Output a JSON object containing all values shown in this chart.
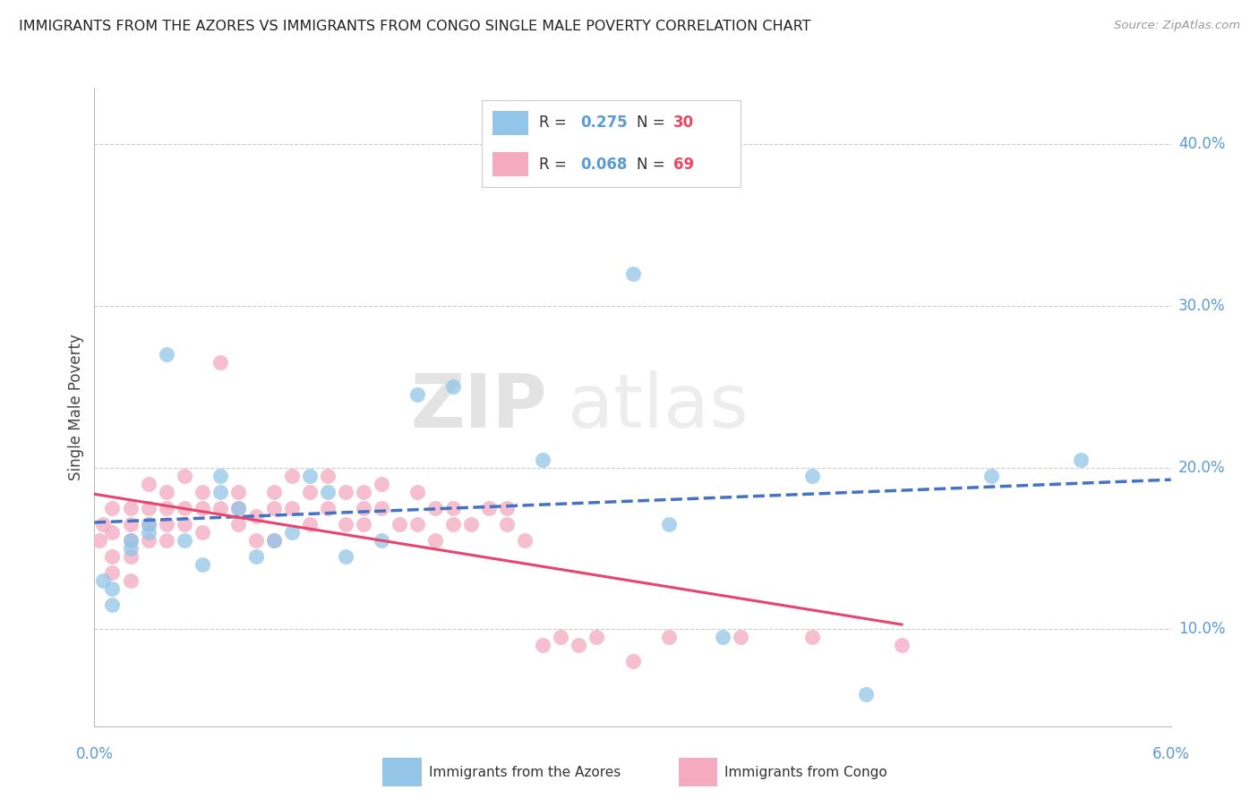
{
  "title": "IMMIGRANTS FROM THE AZORES VS IMMIGRANTS FROM CONGO SINGLE MALE POVERTY CORRELATION CHART",
  "source": "Source: ZipAtlas.com",
  "ylabel": "Single Male Poverty",
  "xlim": [
    0.0,
    0.06
  ],
  "ylim": [
    0.04,
    0.435
  ],
  "yticks": [
    0.1,
    0.2,
    0.3,
    0.4
  ],
  "ytick_labels": [
    "10.0%",
    "20.0%",
    "30.0%",
    "40.0%"
  ],
  "azores_color": "#92C5E8",
  "congo_color": "#F4AABF",
  "azores_line_color": "#4472C4",
  "congo_line_color": "#E8456E",
  "watermark_zip": "ZIP",
  "watermark_atlas": "atlas",
  "azores_R": "0.275",
  "azores_N": "30",
  "congo_R": "0.068",
  "congo_N": "69",
  "azores_x": [
    0.0005,
    0.001,
    0.001,
    0.002,
    0.002,
    0.003,
    0.003,
    0.004,
    0.005,
    0.006,
    0.007,
    0.007,
    0.008,
    0.009,
    0.01,
    0.011,
    0.012,
    0.013,
    0.014,
    0.016,
    0.018,
    0.02,
    0.025,
    0.03,
    0.032,
    0.035,
    0.04,
    0.043,
    0.05,
    0.055
  ],
  "azores_y": [
    0.13,
    0.125,
    0.115,
    0.155,
    0.15,
    0.165,
    0.16,
    0.27,
    0.155,
    0.14,
    0.195,
    0.185,
    0.175,
    0.145,
    0.155,
    0.16,
    0.195,
    0.185,
    0.145,
    0.155,
    0.245,
    0.25,
    0.205,
    0.32,
    0.165,
    0.095,
    0.195,
    0.06,
    0.195,
    0.205
  ],
  "congo_x": [
    0.0003,
    0.0005,
    0.001,
    0.001,
    0.001,
    0.001,
    0.002,
    0.002,
    0.002,
    0.002,
    0.002,
    0.003,
    0.003,
    0.003,
    0.003,
    0.004,
    0.004,
    0.004,
    0.004,
    0.005,
    0.005,
    0.005,
    0.006,
    0.006,
    0.006,
    0.007,
    0.007,
    0.008,
    0.008,
    0.008,
    0.009,
    0.009,
    0.01,
    0.01,
    0.01,
    0.011,
    0.011,
    0.012,
    0.012,
    0.013,
    0.013,
    0.014,
    0.014,
    0.015,
    0.015,
    0.015,
    0.016,
    0.016,
    0.017,
    0.018,
    0.018,
    0.019,
    0.019,
    0.02,
    0.02,
    0.021,
    0.022,
    0.023,
    0.023,
    0.024,
    0.025,
    0.026,
    0.027,
    0.028,
    0.03,
    0.032,
    0.036,
    0.04,
    0.045
  ],
  "congo_y": [
    0.155,
    0.165,
    0.175,
    0.16,
    0.145,
    0.135,
    0.165,
    0.155,
    0.175,
    0.145,
    0.13,
    0.165,
    0.155,
    0.175,
    0.19,
    0.165,
    0.175,
    0.185,
    0.155,
    0.175,
    0.165,
    0.195,
    0.16,
    0.175,
    0.185,
    0.265,
    0.175,
    0.175,
    0.165,
    0.185,
    0.155,
    0.17,
    0.155,
    0.175,
    0.185,
    0.195,
    0.175,
    0.185,
    0.165,
    0.175,
    0.195,
    0.185,
    0.165,
    0.175,
    0.185,
    0.165,
    0.19,
    0.175,
    0.165,
    0.185,
    0.165,
    0.175,
    0.155,
    0.165,
    0.175,
    0.165,
    0.175,
    0.165,
    0.175,
    0.155,
    0.09,
    0.095,
    0.09,
    0.095,
    0.08,
    0.095,
    0.095,
    0.095,
    0.09
  ]
}
